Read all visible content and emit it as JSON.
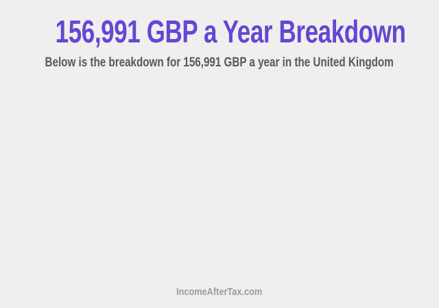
{
  "header": {
    "title": "156,991 GBP a Year Breakdown",
    "subtitle": "Below is the breakdown for 156,991 GBP a year in the United Kingdom"
  },
  "footer": {
    "brand": "IncomeAfterTax.com"
  },
  "colors": {
    "background": "#efefef",
    "title": "#6546d2",
    "subtitle": "#58585a",
    "footer_brand": "#9b9b9b"
  }
}
